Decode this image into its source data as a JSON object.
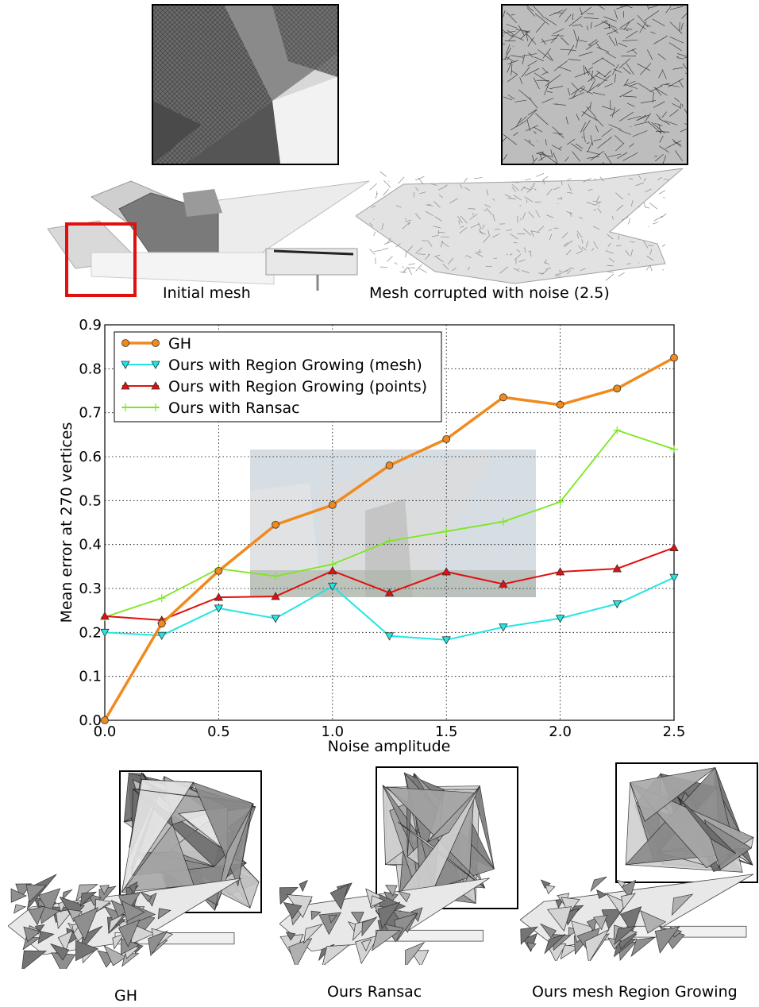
{
  "figure": {
    "top_captions": {
      "initial": "Initial mesh",
      "noisy": "Mesh corrupted with noise (2.5)"
    },
    "bottom_captions": {
      "gh": "GH",
      "ransac": "Ours Ransac",
      "region": "Ours mesh Region Growing"
    }
  },
  "chart_data": {
    "type": "line",
    "xlabel": "Noise amplitude",
    "ylabel": "Mean error at 270 vertices",
    "xlim": [
      0.0,
      2.5
    ],
    "ylim": [
      0.0,
      0.9
    ],
    "xticks": [
      "0.0",
      "0.5",
      "1.0",
      "1.5",
      "2.0",
      "2.5"
    ],
    "yticks": [
      "0.0",
      "0.1",
      "0.2",
      "0.3",
      "0.4",
      "0.5",
      "0.6",
      "0.7",
      "0.8",
      "0.9"
    ],
    "grid": true,
    "legend_position": "top-left",
    "x": [
      0.0,
      0.25,
      0.5,
      0.75,
      1.0,
      1.25,
      1.5,
      1.75,
      2.0,
      2.25,
      2.5
    ],
    "series": [
      {
        "name": "GH",
        "color": "#f08a1e",
        "marker": "circle",
        "values": [
          0.0,
          0.22,
          0.34,
          0.445,
          0.49,
          0.58,
          0.64,
          0.735,
          0.718,
          0.755,
          0.825
        ]
      },
      {
        "name": "Ours with Region Growing (mesh)",
        "color": "#22e5e5",
        "marker": "triangle-down",
        "values": [
          0.2,
          0.193,
          0.255,
          0.232,
          0.305,
          0.192,
          0.183,
          0.212,
          0.232,
          0.265,
          0.325
        ]
      },
      {
        "name": "Ours with Region Growing (points)",
        "color": "#e01010",
        "marker": "triangle-up",
        "values": [
          0.237,
          0.228,
          0.28,
          0.282,
          0.34,
          0.29,
          0.338,
          0.31,
          0.338,
          0.345,
          0.393
        ]
      },
      {
        "name": "Ours with Ransac",
        "color": "#7be81e",
        "marker": "plus",
        "values": [
          0.235,
          0.278,
          0.345,
          0.328,
          0.355,
          0.408,
          0.43,
          0.452,
          0.497,
          0.66,
          0.617
        ]
      }
    ]
  }
}
